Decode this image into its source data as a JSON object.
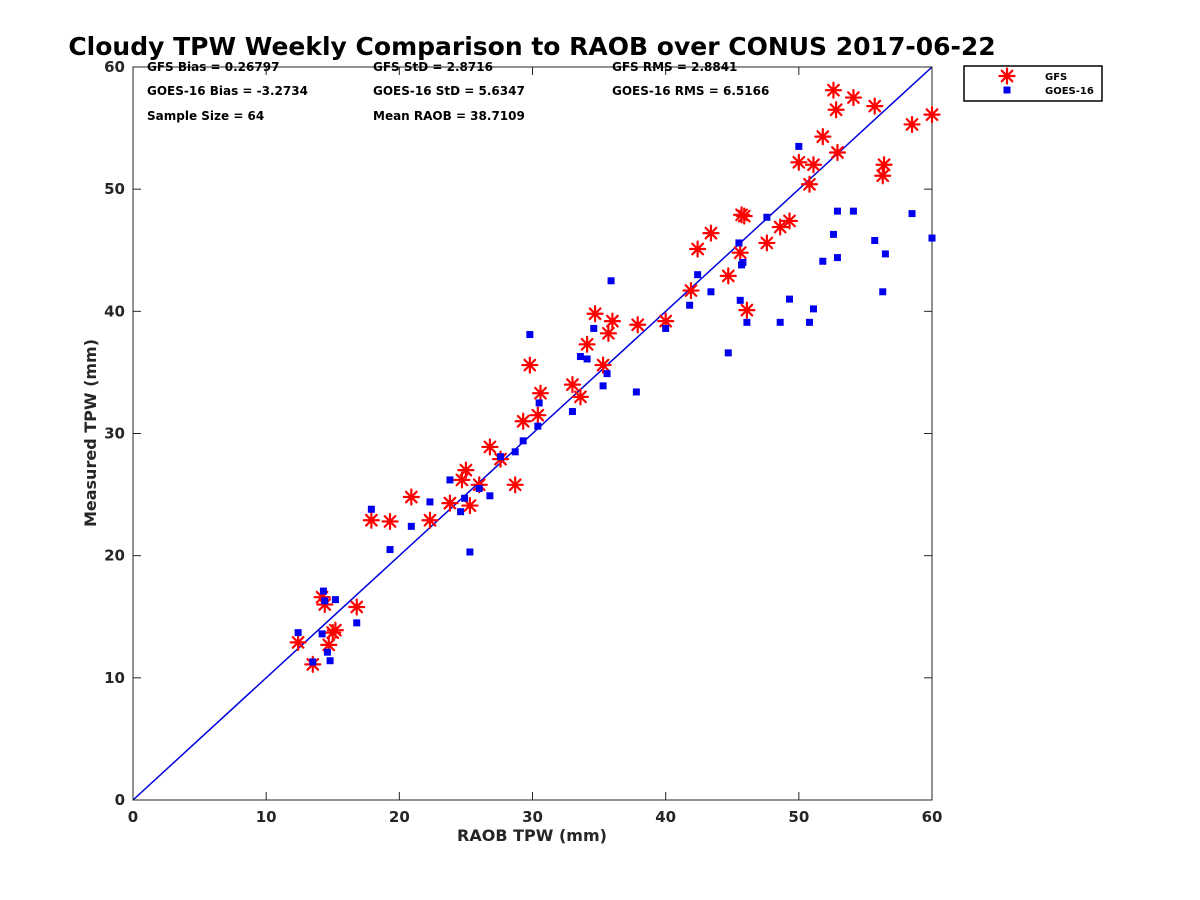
{
  "chart_data": {
    "type": "scatter",
    "title": "Cloudy TPW Weekly Comparison to RAOB over CONUS 2017-06-22",
    "xlabel": "RAOB TPW (mm)",
    "ylabel": "Measured TPW (mm)",
    "xlim": [
      0,
      60
    ],
    "ylim": [
      0,
      60
    ],
    "xticks": [
      0,
      10,
      20,
      30,
      40,
      50,
      60
    ],
    "yticks": [
      0,
      10,
      20,
      30,
      40,
      50,
      60
    ],
    "grid": false,
    "legend_position": "outside-top-right",
    "reference_line": {
      "from": [
        0,
        0
      ],
      "to": [
        60,
        60
      ],
      "color": "#0000dd"
    },
    "stats": [
      "GFS Bias = 0.26797",
      "GFS StD = 2.8716",
      "GFS RMS = 2.8841",
      "GOES-16 Bias = -3.2734",
      "GOES-16 StD = 5.6347",
      "GOES-16 RMS = 6.5166",
      "Sample Size = 64",
      "Mean RAOB = 38.7109"
    ],
    "series": [
      {
        "name": "GFS",
        "marker": "asterisk",
        "color": "#ff0000",
        "points": [
          [
            12.4,
            12.9
          ],
          [
            13.5,
            11.1
          ],
          [
            14.2,
            16.6
          ],
          [
            14.4,
            16.0
          ],
          [
            14.7,
            12.7
          ],
          [
            15.0,
            13.7
          ],
          [
            15.2,
            13.9
          ],
          [
            16.8,
            15.8
          ],
          [
            17.9,
            22.9
          ],
          [
            19.3,
            22.8
          ],
          [
            20.9,
            24.8
          ],
          [
            22.3,
            22.9
          ],
          [
            23.8,
            24.3
          ],
          [
            24.7,
            26.2
          ],
          [
            25.0,
            27.0
          ],
          [
            25.3,
            24.1
          ],
          [
            26.0,
            25.8
          ],
          [
            26.8,
            28.9
          ],
          [
            27.6,
            27.9
          ],
          [
            28.7,
            25.8
          ],
          [
            29.3,
            31.0
          ],
          [
            29.8,
            35.6
          ],
          [
            30.4,
            31.5
          ],
          [
            30.6,
            33.3
          ],
          [
            33.0,
            34.0
          ],
          [
            33.6,
            33.0
          ],
          [
            34.1,
            37.3
          ],
          [
            34.7,
            39.8
          ],
          [
            35.3,
            35.6
          ],
          [
            35.7,
            38.2
          ],
          [
            36.0,
            39.2
          ],
          [
            37.9,
            38.9
          ],
          [
            40.0,
            39.2
          ],
          [
            41.9,
            41.7
          ],
          [
            42.4,
            45.1
          ],
          [
            43.4,
            46.4
          ],
          [
            44.7,
            42.9
          ],
          [
            45.6,
            44.8
          ],
          [
            45.7,
            47.9
          ],
          [
            45.9,
            47.8
          ],
          [
            46.1,
            40.1
          ],
          [
            47.6,
            45.6
          ],
          [
            48.6,
            46.9
          ],
          [
            49.3,
            47.4
          ],
          [
            50.0,
            52.2
          ],
          [
            50.8,
            50.4
          ],
          [
            51.1,
            52.0
          ],
          [
            51.8,
            54.3
          ],
          [
            52.6,
            58.1
          ],
          [
            52.8,
            56.5
          ],
          [
            52.9,
            53.0
          ],
          [
            54.1,
            57.5
          ],
          [
            55.7,
            56.8
          ],
          [
            56.3,
            51.1
          ],
          [
            56.4,
            52.0
          ],
          [
            58.5,
            55.3
          ],
          [
            60.0,
            56.1
          ]
        ]
      },
      {
        "name": "GOES-16",
        "marker": "square",
        "color": "#0000ee",
        "points": [
          [
            12.4,
            13.7
          ],
          [
            13.5,
            11.3
          ],
          [
            14.2,
            13.6
          ],
          [
            14.3,
            17.1
          ],
          [
            14.4,
            16.3
          ],
          [
            14.6,
            12.1
          ],
          [
            14.8,
            11.4
          ],
          [
            15.2,
            16.4
          ],
          [
            16.8,
            14.5
          ],
          [
            17.9,
            23.8
          ],
          [
            19.3,
            20.5
          ],
          [
            20.9,
            22.4
          ],
          [
            22.3,
            24.4
          ],
          [
            23.8,
            26.2
          ],
          [
            24.6,
            23.6
          ],
          [
            24.9,
            24.7
          ],
          [
            25.3,
            20.3
          ],
          [
            26.0,
            25.5
          ],
          [
            26.8,
            24.9
          ],
          [
            27.6,
            28.1
          ],
          [
            28.7,
            28.5
          ],
          [
            29.3,
            29.4
          ],
          [
            29.8,
            38.1
          ],
          [
            30.4,
            30.6
          ],
          [
            30.5,
            32.5
          ],
          [
            33.0,
            31.8
          ],
          [
            33.6,
            36.3
          ],
          [
            34.1,
            36.1
          ],
          [
            34.6,
            38.6
          ],
          [
            35.3,
            33.9
          ],
          [
            35.6,
            34.9
          ],
          [
            35.9,
            42.5
          ],
          [
            37.8,
            33.4
          ],
          [
            40.0,
            38.6
          ],
          [
            41.8,
            40.5
          ],
          [
            42.4,
            43.0
          ],
          [
            43.4,
            41.6
          ],
          [
            44.7,
            36.6
          ],
          [
            45.5,
            45.6
          ],
          [
            45.6,
            40.9
          ],
          [
            45.7,
            43.8
          ],
          [
            45.8,
            44.0
          ],
          [
            46.1,
            39.1
          ],
          [
            47.6,
            47.7
          ],
          [
            48.6,
            39.1
          ],
          [
            49.3,
            41.0
          ],
          [
            50.0,
            53.5
          ],
          [
            50.8,
            39.1
          ],
          [
            51.1,
            40.2
          ],
          [
            51.8,
            44.1
          ],
          [
            52.6,
            46.3
          ],
          [
            52.9,
            48.2
          ],
          [
            52.9,
            44.4
          ],
          [
            54.1,
            48.2
          ],
          [
            55.7,
            45.8
          ],
          [
            56.3,
            41.6
          ],
          [
            56.5,
            44.7
          ],
          [
            58.5,
            48.0
          ],
          [
            60.0,
            46.0
          ]
        ]
      }
    ]
  }
}
